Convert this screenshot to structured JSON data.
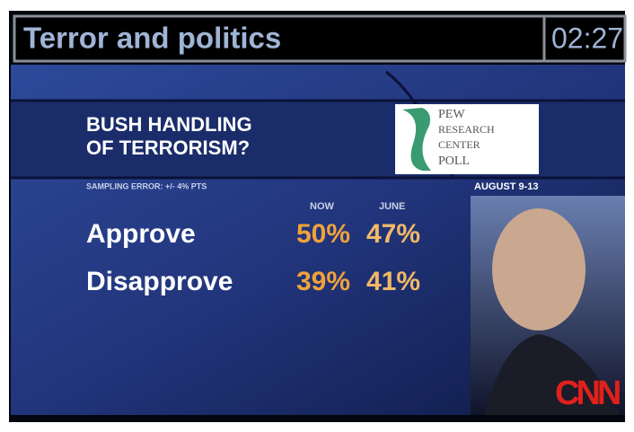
{
  "header": {
    "title": "Terror and politics",
    "timer": "02:27"
  },
  "graphic": {
    "question": [
      "BUSH HANDLING",
      "OF TERRORISM?"
    ],
    "source_logo": [
      "PEW",
      "RESEARCH",
      "CENTER",
      "POLL"
    ],
    "sampling_error": "SAMPLING ERROR: +/- 4% PTS",
    "date": "AUGUST 9-13",
    "table": {
      "columns": [
        "NOW",
        "JUNE"
      ],
      "rows": [
        [
          "Approve",
          "50%",
          "47%"
        ],
        [
          "Disapprove",
          "39%",
          "41%"
        ]
      ]
    }
  },
  "network": "CNN"
}
